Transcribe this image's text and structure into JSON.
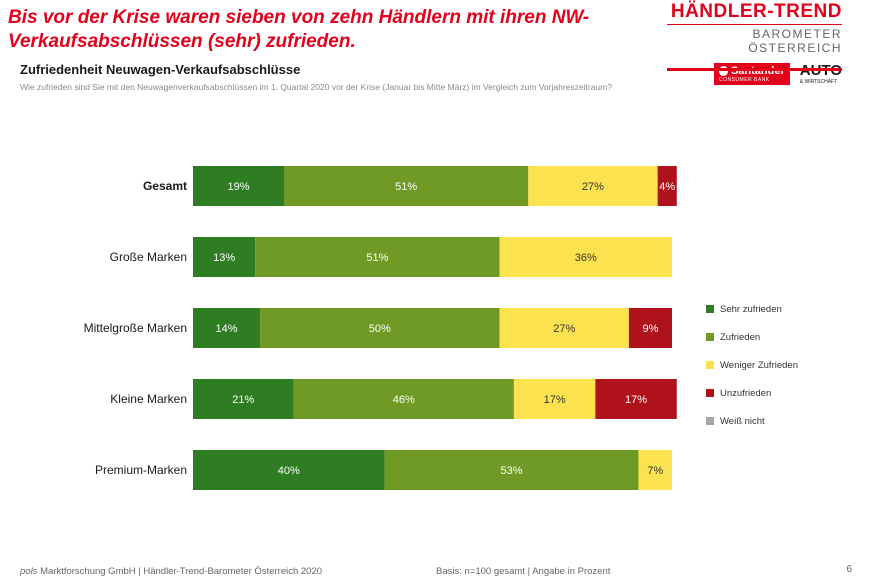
{
  "headline": "Bis vor der Krise waren sieben von zehn Händlern mit ihren NW-Verkaufsabschlüssen (sehr) zufrieden.",
  "logo": {
    "main": "HÄNDLER-TREND",
    "sub": "BAROMETER ÖSTERREICH",
    "santander": "Santander",
    "santander_sub": "CONSUMER BANK",
    "auto": "AUTO",
    "auto_sub": "& WIRTSCHAFT"
  },
  "colors": {
    "brand_red": "#e2001a"
  },
  "chart_data": {
    "type": "bar",
    "orientation": "horizontal",
    "stacked": true,
    "title": "Zufriedenheit Neuwagen-Verkaufsabschlüsse",
    "subtitle": "Wie zufrieden sind Sie mit den Neuwagenverkaufsabschlüssen im 1. Quartal 2020 vor der Krise (Januar bis Mitte März) im Vergleich zum Vorjahreszeitraum?",
    "categories": [
      "Gesamt",
      "Große Marken",
      "Mittelgroße Marken",
      "Kleine Marken",
      "Premium-Marken"
    ],
    "bold_categories": [
      "Gesamt"
    ],
    "unit": "%",
    "series": [
      {
        "name": "Sehr zufrieden",
        "color": "#2e7d23",
        "values": [
          19,
          13,
          14,
          21,
          40
        ]
      },
      {
        "name": "Zufrieden",
        "color": "#6f9a26",
        "values": [
          51,
          51,
          50,
          46,
          53
        ]
      },
      {
        "name": "Weniger Zufrieden",
        "color": "#fde24f",
        "values": [
          27,
          36,
          27,
          17,
          7
        ]
      },
      {
        "name": "Unzufrieden",
        "color": "#b0121b",
        "values": [
          4,
          0,
          9,
          17,
          0
        ]
      },
      {
        "name": "Weiß nicht",
        "color": "#a6a6a6",
        "values": [
          0,
          0,
          0,
          0,
          0
        ]
      }
    ],
    "xlim": [
      0,
      100
    ],
    "legend_position": "right",
    "grid": false
  },
  "footer": {
    "company_italic": "pols",
    "company_rest": " Marktforschung GmbH | Händler-Trend-Barometer Österreich 2020",
    "basis": "Basis: n=100 gesamt | Angabe in Prozent",
    "page": "6"
  }
}
